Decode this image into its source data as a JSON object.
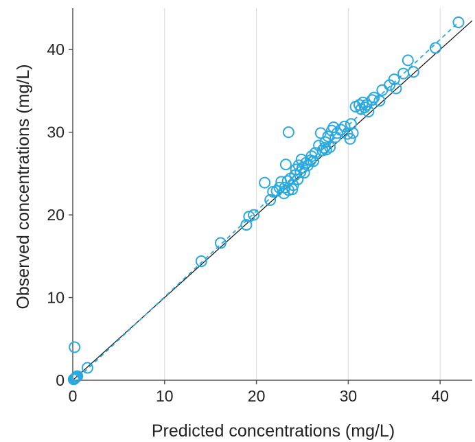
{
  "chart_data": {
    "type": "scatter",
    "xlabel": "Predicted concentrations (mg/L)",
    "ylabel": "Observed concentrations (mg/L)",
    "xlim": [
      0,
      43.5
    ],
    "ylim": [
      0,
      45
    ],
    "xticks": [
      0,
      10,
      20,
      30,
      40
    ],
    "yticks": [
      0,
      10,
      20,
      30,
      40
    ],
    "grid": "vertical",
    "legend": "none",
    "colors": {
      "points": "#29A9E0",
      "identity_line": "#1a1a1a",
      "trend_line": "#29A9E0",
      "grid": "#d9d9d9",
      "axis": "#555555"
    },
    "identity_line": {
      "from": [
        0,
        0
      ],
      "to": [
        43.5,
        43.5
      ]
    },
    "trend_line": {
      "from": [
        0,
        -0.3
      ],
      "to": [
        42,
        43.3
      ]
    },
    "points": [
      [
        0.1,
        0.1
      ],
      [
        0.2,
        0.2
      ],
      [
        0.3,
        0.3
      ],
      [
        0.4,
        0.4
      ],
      [
        0.5,
        0.5
      ],
      [
        0.2,
        4.0
      ],
      [
        1.6,
        1.5
      ],
      [
        14.0,
        14.4
      ],
      [
        16.1,
        16.6
      ],
      [
        18.9,
        18.8
      ],
      [
        19.2,
        19.8
      ],
      [
        19.7,
        20.0
      ],
      [
        20.9,
        23.9
      ],
      [
        21.5,
        21.8
      ],
      [
        21.8,
        22.8
      ],
      [
        22.2,
        22.9
      ],
      [
        22.5,
        23.3
      ],
      [
        22.7,
        24.0
      ],
      [
        23.0,
        22.6
      ],
      [
        23.1,
        23.3
      ],
      [
        23.2,
        26.1
      ],
      [
        23.4,
        24.1
      ],
      [
        23.5,
        23.0
      ],
      [
        23.5,
        30.0
      ],
      [
        23.7,
        24.4
      ],
      [
        23.9,
        23.1
      ],
      [
        24.0,
        23.6
      ],
      [
        24.2,
        24.8
      ],
      [
        24.3,
        25.5
      ],
      [
        24.5,
        24.3
      ],
      [
        24.6,
        26.0
      ],
      [
        24.8,
        25.2
      ],
      [
        24.9,
        26.7
      ],
      [
        25.0,
        25.7
      ],
      [
        25.2,
        25.1
      ],
      [
        25.4,
        26.3
      ],
      [
        25.6,
        26.0
      ],
      [
        25.9,
        26.6
      ],
      [
        26.0,
        27.1
      ],
      [
        26.2,
        26.5
      ],
      [
        26.4,
        27.5
      ],
      [
        26.8,
        28.4
      ],
      [
        27.0,
        29.9
      ],
      [
        27.2,
        27.8
      ],
      [
        27.4,
        28.1
      ],
      [
        27.5,
        28.8
      ],
      [
        27.6,
        27.9
      ],
      [
        27.8,
        29.5
      ],
      [
        28.0,
        28.2
      ],
      [
        28.2,
        30.2
      ],
      [
        28.4,
        30.6
      ],
      [
        28.6,
        29.4
      ],
      [
        28.8,
        29.9
      ],
      [
        29.2,
        30.3
      ],
      [
        29.6,
        30.7
      ],
      [
        29.9,
        29.8
      ],
      [
        30.2,
        29.2
      ],
      [
        30.3,
        31.0
      ],
      [
        30.5,
        29.9
      ],
      [
        30.8,
        33.1
      ],
      [
        31.2,
        33.3
      ],
      [
        31.4,
        32.8
      ],
      [
        31.6,
        33.6
      ],
      [
        31.8,
        33.0
      ],
      [
        32.0,
        33.3
      ],
      [
        32.2,
        32.5
      ],
      [
        32.6,
        33.9
      ],
      [
        32.8,
        34.2
      ],
      [
        33.4,
        33.8
      ],
      [
        33.7,
        35.1
      ],
      [
        34.5,
        35.7
      ],
      [
        35.0,
        36.4
      ],
      [
        35.2,
        35.3
      ],
      [
        36.0,
        37.1
      ],
      [
        36.5,
        38.7
      ],
      [
        37.1,
        37.3
      ],
      [
        39.5,
        40.2
      ],
      [
        42.0,
        43.3
      ]
    ]
  }
}
